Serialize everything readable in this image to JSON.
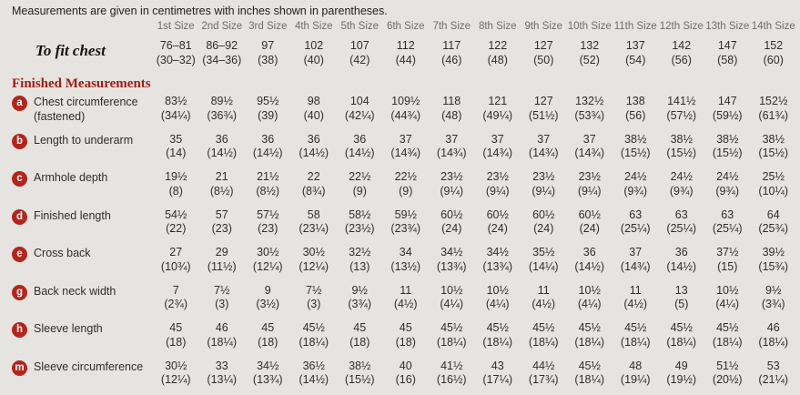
{
  "note": "Measurements are given in centimetres with inches shown in parentheses.",
  "section_heading": "Finished Measurements",
  "colors": {
    "background": "#e5e4e0",
    "heading_red": "#a21d15",
    "badge_red": "#b5241c",
    "header_gray": "#6d6d6d",
    "text": "#2e2e2e"
  },
  "size_headers": [
    "1st Size",
    "2nd Size",
    "3rd Size",
    "4th Size",
    "5th Size",
    "6th Size",
    "7th Size",
    "8th Size",
    "9th Size",
    "10th Size",
    "11th Size",
    "12th Size",
    "13th Size",
    "14th Size"
  ],
  "to_fit": {
    "label": "To fit chest",
    "cm": [
      "76–81",
      "86–92",
      "97",
      "102",
      "107",
      "112",
      "117",
      "122",
      "127",
      "132",
      "137",
      "142",
      "147",
      "152"
    ],
    "in": [
      "(30–32)",
      "(34–36)",
      "(38)",
      "(40)",
      "(42)",
      "(44)",
      "(46)",
      "(48)",
      "(50)",
      "(52)",
      "(54)",
      "(56)",
      "(58)",
      "(60)"
    ]
  },
  "rows": [
    {
      "key": "a",
      "label": "Chest circumference",
      "sublabel": "(fastened)",
      "cm": [
        "83½",
        "89½",
        "95½",
        "98",
        "104",
        "109½",
        "118",
        "121",
        "127",
        "132½",
        "138",
        "141½",
        "147",
        "152½"
      ],
      "in": [
        "(34¼)",
        "(36¾)",
        "(39)",
        "(40)",
        "(42¼)",
        "(44¾)",
        "(48)",
        "(49¼)",
        "(51½)",
        "(53¾)",
        "(56)",
        "(57½)",
        "(59½)",
        "(61¾)"
      ]
    },
    {
      "key": "b",
      "label": "Length to underarm",
      "sublabel": "",
      "cm": [
        "35",
        "36",
        "36",
        "36",
        "36",
        "37",
        "37",
        "37",
        "37",
        "37",
        "38½",
        "38½",
        "38½",
        "38½"
      ],
      "in": [
        "(14)",
        "(14½)",
        "(14½)",
        "(14½)",
        "(14½)",
        "(14¾)",
        "(14¾)",
        "(14¾)",
        "(14¾)",
        "(14¾)",
        "(15½)",
        "(15½)",
        "(15½)",
        "(15½)"
      ]
    },
    {
      "key": "c",
      "label": "Armhole depth",
      "sublabel": "",
      "cm": [
        "19½",
        "21",
        "21½",
        "22",
        "22½",
        "22½",
        "23½",
        "23½",
        "23½",
        "23½",
        "24½",
        "24½",
        "24½",
        "25½"
      ],
      "in": [
        "(8)",
        "(8½)",
        "(8½)",
        "(8¾)",
        "(9)",
        "(9)",
        "(9¼)",
        "(9¼)",
        "(9¼)",
        "(9¼)",
        "(9¾)",
        "(9¾)",
        "(9¾)",
        "(10¼)"
      ]
    },
    {
      "key": "d",
      "label": "Finished length",
      "sublabel": "",
      "cm": [
        "54½",
        "57",
        "57½",
        "58",
        "58½",
        "59½",
        "60½",
        "60½",
        "60½",
        "60½",
        "63",
        "63",
        "63",
        "64"
      ],
      "in": [
        "(22)",
        "(23)",
        "(23)",
        "(23¼)",
        "(23½)",
        "(23¾)",
        "(24)",
        "(24)",
        "(24)",
        "(24)",
        "(25¼)",
        "(25¼)",
        "(25¼)",
        "(25¾)"
      ]
    },
    {
      "key": "e",
      "label": "Cross back",
      "sublabel": "",
      "cm": [
        "27",
        "29",
        "30½",
        "30½",
        "32½",
        "34",
        "34½",
        "34½",
        "35½",
        "36",
        "37",
        "36",
        "37½",
        "39½"
      ],
      "in": [
        "(10¾)",
        "(11½)",
        "(12¼)",
        "(12¼)",
        "(13)",
        "(13½)",
        "(13¾)",
        "(13¾)",
        "(14¼)",
        "(14½)",
        "(14¾)",
        "(14½)",
        "(15)",
        "(15¾)"
      ]
    },
    {
      "key": "g",
      "label": "Back neck width",
      "sublabel": "",
      "cm": [
        "7",
        "7½",
        "9",
        "7½",
        "9½",
        "11",
        "10½",
        "10½",
        "11",
        "10½",
        "11",
        "13",
        "10½",
        "9½"
      ],
      "in": [
        "(2¾)",
        "(3)",
        "(3½)",
        "(3)",
        "(3¾)",
        "(4½)",
        "(4¼)",
        "(4¼)",
        "(4½)",
        "(4¼)",
        "(4½)",
        "(5)",
        "(4¼)",
        "(3¾)"
      ]
    },
    {
      "key": "h",
      "label": "Sleeve length",
      "sublabel": "",
      "cm": [
        "45",
        "46",
        "45",
        "45½",
        "45",
        "45",
        "45½",
        "45½",
        "45½",
        "45½",
        "45½",
        "45½",
        "45½",
        "46"
      ],
      "in": [
        "(18)",
        "(18¼)",
        "(18)",
        "(18¼)",
        "(18)",
        "(18)",
        "(18¼)",
        "(18¼)",
        "(18¼)",
        "(18¼)",
        "(18¼)",
        "(18¼)",
        "(18¼)",
        "(18¼)"
      ]
    },
    {
      "key": "m",
      "label": "Sleeve circumference",
      "sublabel": "",
      "cm": [
        "30½",
        "33",
        "34½",
        "36½",
        "38½",
        "40",
        "41½",
        "43",
        "44½",
        "45½",
        "48",
        "49",
        "51½",
        "53"
      ],
      "in": [
        "(12¼)",
        "(13¼)",
        "(13¾)",
        "(14½)",
        "(15½)",
        "(16)",
        "(16½)",
        "(17¼)",
        "(17¾)",
        "(18¼)",
        "(19¼)",
        "(19½)",
        "(20½)",
        "(21¼)"
      ]
    }
  ]
}
